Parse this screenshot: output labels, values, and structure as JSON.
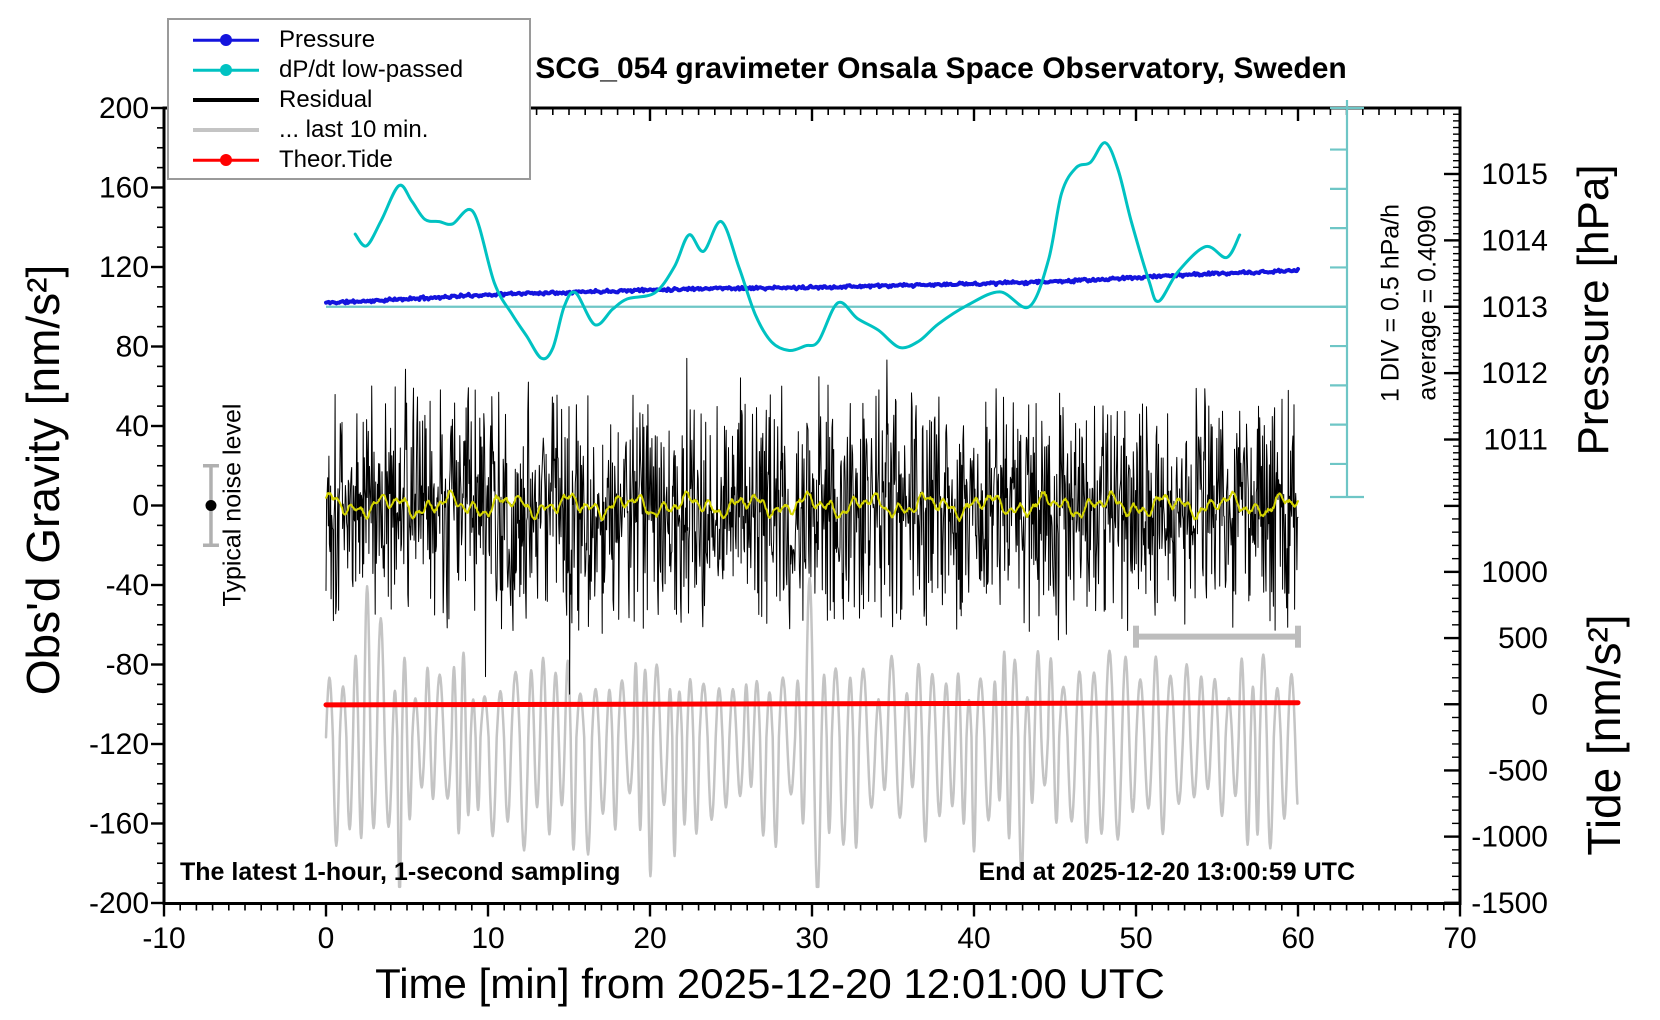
{
  "title": "SCG_054 gravimeter Onsala Space Observatory, Sweden",
  "annotations": {
    "noise_level": "Typical noise level",
    "div_scale": "1 DIV = 0.5 hPa/h",
    "average": "average = 0.4090",
    "sampling_note": "The latest 1-hour, 1-second sampling",
    "end_note": "End at 2025-12-20 13:00:59 UTC"
  },
  "axes": {
    "x": {
      "label": "Time [min] from 2025-12-20 12:01:00 UTC",
      "range": [
        -10,
        70
      ],
      "major_ticks": [
        -10,
        0,
        10,
        20,
        30,
        40,
        50,
        60,
        70
      ],
      "minor_step": 1
    },
    "y_left": {
      "label": "Obs'd Gravity [nm/s²]",
      "range": [
        -200,
        200
      ],
      "major_ticks": [
        -200,
        -160,
        -120,
        -80,
        -40,
        0,
        40,
        80,
        120,
        160,
        200
      ],
      "minor_step": 10
    },
    "y_right_pressure": {
      "label": "Pressure [hPa]",
      "major_ticks": [
        1011,
        1012,
        1013,
        1014,
        1015
      ],
      "minor_step": 0.1
    },
    "y_right_tide": {
      "label": "Tide [nm/s²]",
      "major_ticks": [
        -1500,
        -1000,
        -500,
        0,
        500,
        1000
      ],
      "minor_step": 100
    }
  },
  "legend": {
    "items": [
      {
        "label": "Pressure",
        "color": "#1414dd",
        "marker": true,
        "line_width": 2.5
      },
      {
        "label": "dP/dt low-passed",
        "color": "#00c2c2",
        "marker": true,
        "line_width": 2.5
      },
      {
        "label": "Residual",
        "color": "#000000",
        "marker": false,
        "line_width": 4
      },
      {
        "label": "... last 10 min.",
        "color": "#c4c4c4",
        "marker": false,
        "line_width": 4
      },
      {
        "label": "Theor.Tide",
        "color": "#ff0000",
        "marker": true,
        "line_width": 2.5
      }
    ]
  },
  "chart_data": {
    "type": "line",
    "x_unit": "minutes from 2025-12-20 12:01:00 UTC",
    "axis_mapping": {
      "pressure_ref": {
        "hpa": 1013,
        "at_gravity_nms2": 100,
        "gravity_units_per_hpa": 33.4
      },
      "dpdt_ref": {
        "zero_at_gravity_nms2": 100,
        "hpa_per_h_per_div": 0.5,
        "gravity_units_per_div": 19.65
      },
      "tide_ref": {
        "zero_at_gravity_nms2": -100,
        "gravity_units_per_500_nms2": 33.3
      }
    },
    "series": [
      {
        "name": "Pressure",
        "unit": "hPa",
        "color": "#1414dd",
        "points": [
          [
            0,
            1013.06
          ],
          [
            3,
            1013.09
          ],
          [
            6,
            1013.13
          ],
          [
            9,
            1013.17
          ],
          [
            12,
            1013.2
          ],
          [
            15,
            1013.22
          ],
          [
            18,
            1013.24
          ],
          [
            21,
            1013.26
          ],
          [
            24,
            1013.28
          ],
          [
            27,
            1013.28
          ],
          [
            30,
            1013.29
          ],
          [
            33,
            1013.31
          ],
          [
            36,
            1013.32
          ],
          [
            39,
            1013.34
          ],
          [
            42,
            1013.36
          ],
          [
            45,
            1013.38
          ],
          [
            48,
            1013.41
          ],
          [
            50,
            1013.44
          ],
          [
            52,
            1013.47
          ],
          [
            55,
            1013.5
          ],
          [
            58,
            1013.52
          ],
          [
            60,
            1013.55
          ]
        ],
        "jitter_hpa": 0.028,
        "seed": 11
      },
      {
        "name": "dP/dt low-passed",
        "unit": "hPa/h",
        "color": "#00c2c2",
        "points": [
          [
            1.8,
            0.93
          ],
          [
            2.5,
            0.78
          ],
          [
            3.4,
            1.1
          ],
          [
            4.5,
            1.55
          ],
          [
            5.3,
            1.35
          ],
          [
            6.1,
            1.12
          ],
          [
            7.0,
            1.09
          ],
          [
            7.8,
            1.06
          ],
          [
            9.1,
            1.21
          ],
          [
            10.4,
            0.3
          ],
          [
            11.5,
            -0.1
          ],
          [
            12.4,
            -0.38
          ],
          [
            13.3,
            -0.66
          ],
          [
            14.0,
            -0.53
          ],
          [
            14.7,
            0.0
          ],
          [
            15.4,
            0.18
          ],
          [
            16.6,
            -0.23
          ],
          [
            17.7,
            -0.03
          ],
          [
            18.6,
            0.1
          ],
          [
            20.3,
            0.18
          ],
          [
            21.5,
            0.51
          ],
          [
            22.4,
            0.92
          ],
          [
            23.3,
            0.71
          ],
          [
            24.4,
            1.09
          ],
          [
            25.5,
            0.5
          ],
          [
            26.5,
            -0.1
          ],
          [
            27.5,
            -0.45
          ],
          [
            28.6,
            -0.56
          ],
          [
            29.6,
            -0.5
          ],
          [
            30.4,
            -0.44
          ],
          [
            31.6,
            0.05
          ],
          [
            32.8,
            -0.15
          ],
          [
            34.1,
            -0.3
          ],
          [
            35.4,
            -0.52
          ],
          [
            36.6,
            -0.44
          ],
          [
            37.8,
            -0.22
          ],
          [
            39.6,
            0.02
          ],
          [
            41.6,
            0.19
          ],
          [
            43.4,
            0.0
          ],
          [
            44.6,
            0.6
          ],
          [
            45.4,
            1.45
          ],
          [
            46.3,
            1.78
          ],
          [
            47.2,
            1.85
          ],
          [
            48.1,
            2.1
          ],
          [
            48.9,
            1.75
          ],
          [
            49.7,
            1.1
          ],
          [
            50.8,
            0.33
          ],
          [
            51.4,
            0.07
          ],
          [
            52.6,
            0.45
          ],
          [
            54.3,
            0.77
          ],
          [
            55.6,
            0.63
          ],
          [
            56.4,
            0.92
          ]
        ]
      },
      {
        "name": "Residual",
        "unit": "nm/s2 (gravity axis)",
        "color": "#000000",
        "noise": {
          "mean": 0,
          "typical_amplitude": 60,
          "extremes": [
            -96,
            92
          ],
          "samples": 1700,
          "spike_probability": 0.015,
          "seed": 1337
        },
        "t_range": [
          0,
          60
        ]
      },
      {
        "name": "Residual low-passed (yellow)",
        "unit": "nm/s2 (gravity axis)",
        "color": "#d4d400",
        "noise": {
          "mean": 0,
          "typical_amplitude": 6,
          "seed": 77
        },
        "t_range": [
          0,
          60
        ]
      },
      {
        "name": "... last 10 min.",
        "unit": "nm/s2 (tide axis)",
        "color": "#c4c4c4",
        "oscillation": {
          "center": -250,
          "period_min": [
            0.55,
            1.05
          ],
          "peak_amplitude": [
            280,
            660
          ],
          "trough_amplitude": [
            350,
            900
          ],
          "extremes": [
            1000,
            -1350
          ],
          "seed": 42
        },
        "t_range": [
          0,
          60
        ]
      },
      {
        "name": "Theor.Tide",
        "unit": "nm/s2 (tide axis)",
        "color": "#ff0000",
        "points": [
          [
            0,
            -5
          ],
          [
            60,
            12
          ]
        ]
      }
    ],
    "markers": {
      "noise_level_bar": {
        "t": -7.1,
        "value": 0,
        "error": 20
      },
      "last10_span_bar": {
        "t_start": 50,
        "t_end": 60,
        "gravity_level": -66
      },
      "dpdt_zero_line_gravity": 100
    }
  }
}
